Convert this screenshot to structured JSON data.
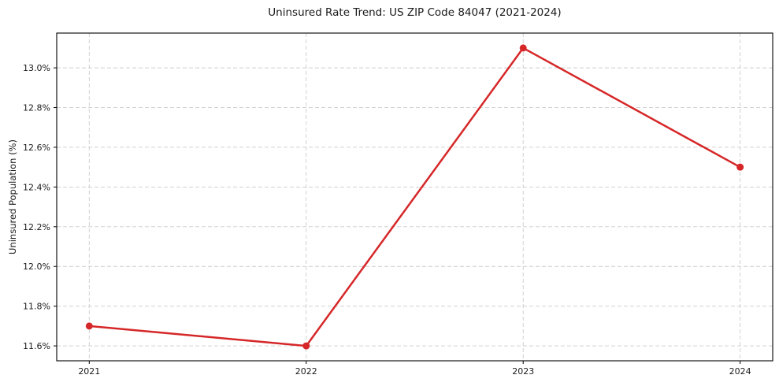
{
  "chart_data": {
    "type": "line",
    "title": "Uninsured Rate Trend: US ZIP Code 84047 (2021-2024)",
    "xlabel": "",
    "ylabel": "Uninsured Population (%)",
    "x": [
      2021,
      2022,
      2023,
      2024
    ],
    "categories": [
      "2021",
      "2022",
      "2023",
      "2024"
    ],
    "series": [
      {
        "name": "Uninsured rate (%)",
        "values": [
          11.7,
          11.6,
          13.1,
          12.5
        ]
      }
    ],
    "xticks": [
      2021,
      2022,
      2023,
      2024
    ],
    "xtick_labels": [
      "2021",
      "2022",
      "2023",
      "2024"
    ],
    "yticks": [
      11.6,
      11.8,
      12.0,
      12.2,
      12.4,
      12.6,
      12.8,
      13.0
    ],
    "ytick_labels": [
      "11.6%",
      "11.8%",
      "12.0%",
      "12.2%",
      "12.4%",
      "12.6%",
      "12.8%",
      "13.0%"
    ],
    "xlim": [
      2020.85,
      2024.15
    ],
    "ylim": [
      11.525,
      13.175
    ],
    "grid": true,
    "grid_style": "dashed",
    "legend": "none",
    "line_color": "#d62728",
    "marker": "circle",
    "background_color": "#ffffff"
  }
}
